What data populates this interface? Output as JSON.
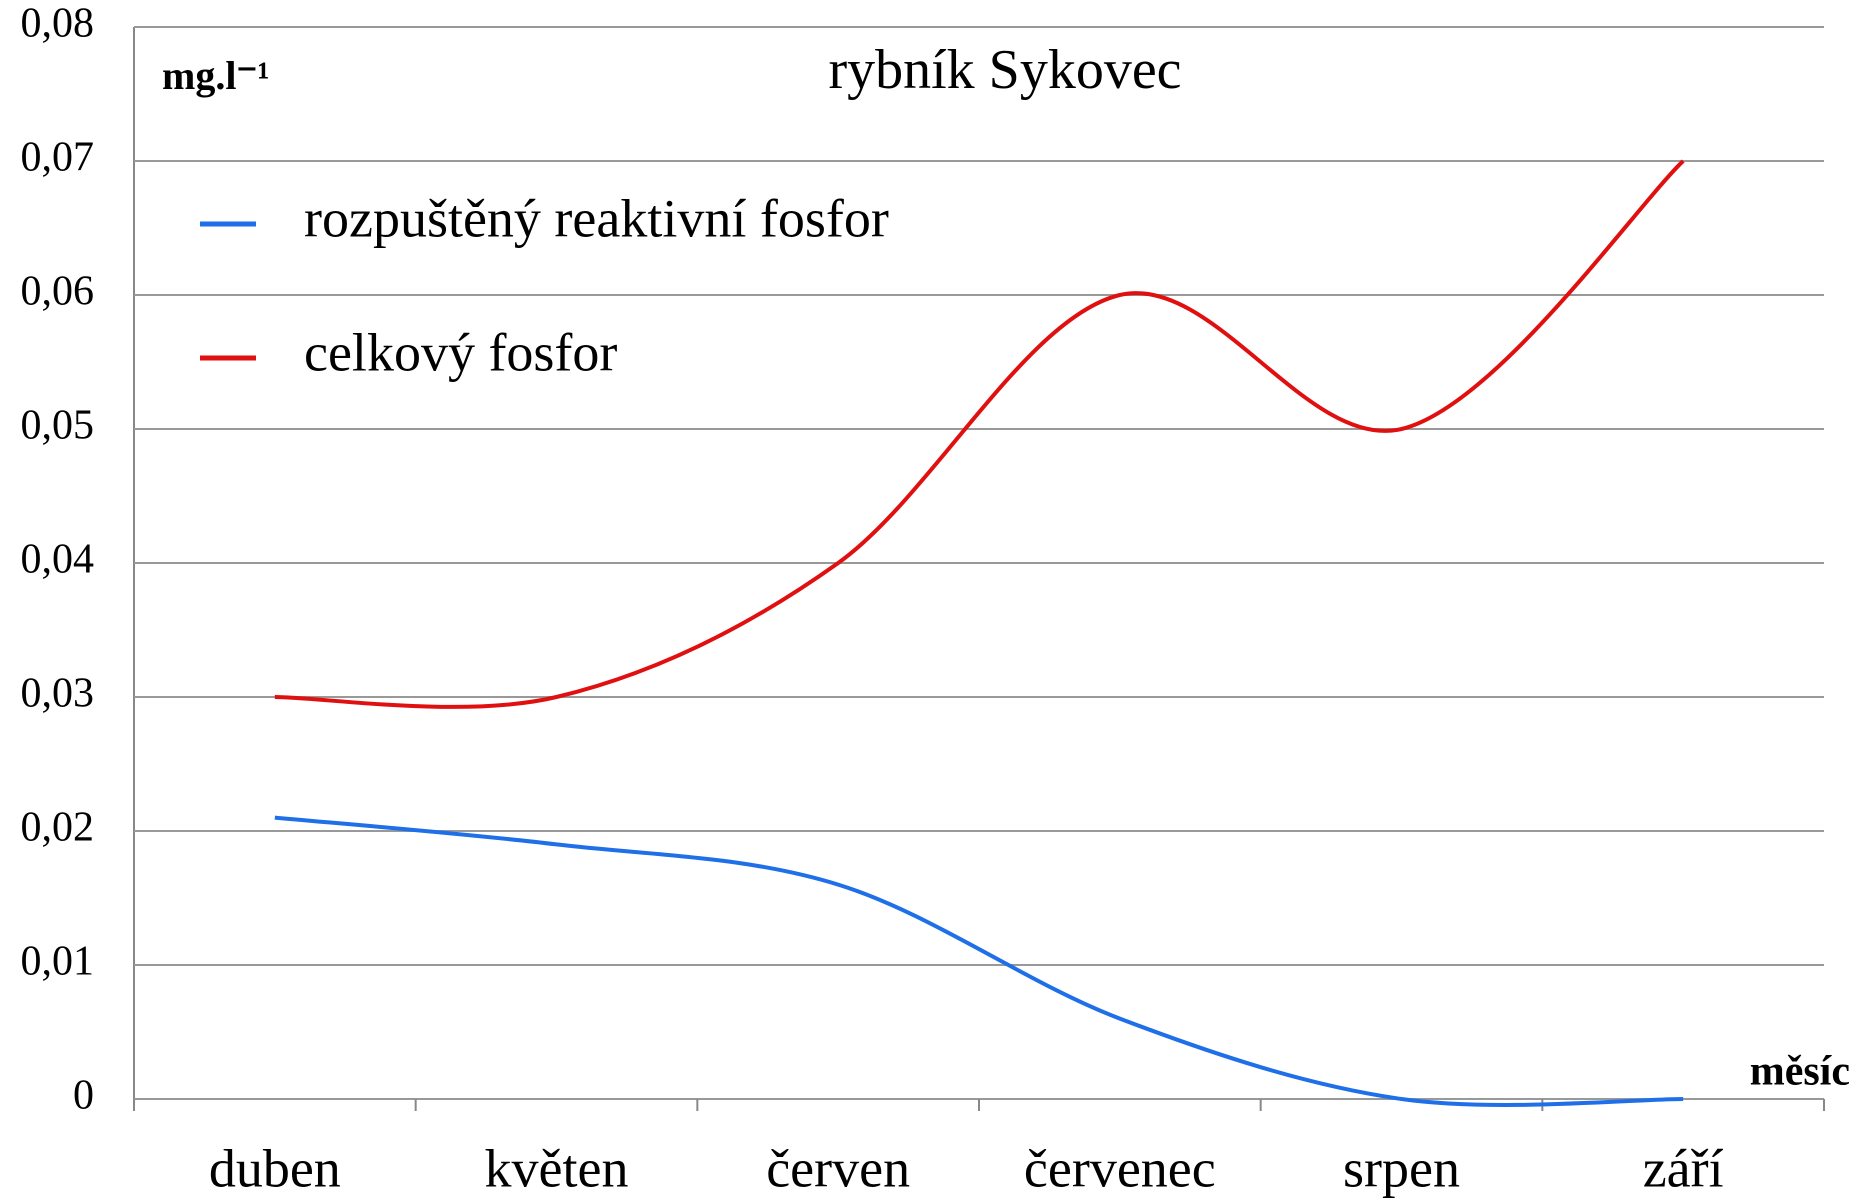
{
  "chart_data": {
    "type": "line",
    "title": "rybník Sykovec",
    "ylabel": "mg.l⁻¹",
    "xlabel": "měsíc",
    "categories": [
      "duben",
      "květen",
      "červen",
      "červenec",
      "srpen",
      "září"
    ],
    "series": [
      {
        "name": "rozpuštěný reaktivní fosfor",
        "color": "#1f6fe8",
        "values": [
          0.021,
          0.019,
          0.016,
          0.006,
          0,
          0
        ]
      },
      {
        "name": "celkový fosfor",
        "color": "#e01010",
        "values": [
          0.03,
          0.03,
          0.04,
          0.06,
          0.05,
          0.07
        ]
      }
    ],
    "ylim": [
      0,
      0.08
    ],
    "yticks": [
      0,
      {
        "value": 0.01,
        "label": "0,01"
      },
      {
        "value": 0.02,
        "label": "0,02"
      },
      {
        "value": 0.03,
        "label": "0,03"
      },
      {
        "value": 0.04,
        "label": "0,04"
      },
      {
        "value": 0.05,
        "label": "0,05"
      },
      {
        "value": 0.06,
        "label": "0,06"
      },
      {
        "value": 0.07,
        "label": "0,07"
      },
      {
        "value": 0.08,
        "label": "0,08"
      }
    ],
    "grid": true,
    "legend": "upper left"
  }
}
